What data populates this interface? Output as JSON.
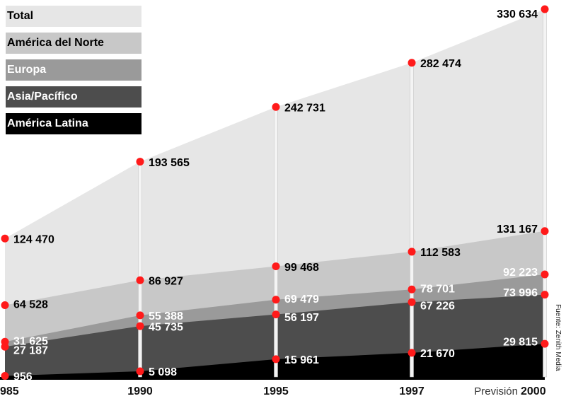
{
  "chart_data": {
    "type": "area",
    "x": [
      "985",
      "1990",
      "1995",
      "1997",
      "2000"
    ],
    "x_prefix_last": "Previsión",
    "series": [
      {
        "name": "Total",
        "values": [
          124470,
          193565,
          242731,
          282474,
          330634
        ],
        "labels": [
          "124 470",
          "193 565",
          "242 731",
          "282 474",
          "330 634"
        ],
        "color": "#e6e6e6",
        "text_color": "#000000"
      },
      {
        "name": "América del Norte",
        "values": [
          64528,
          86927,
          99468,
          112583,
          131167
        ],
        "labels": [
          "64 528",
          "86 927",
          "99 468",
          "112 583",
          "131 167"
        ],
        "color": "#c8c8c8",
        "text_color": "#000000"
      },
      {
        "name": "Europa",
        "values": [
          31625,
          55388,
          69479,
          78701,
          92223
        ],
        "labels": [
          "31 625",
          "55 388",
          "69 479",
          "78 701",
          "92 223"
        ],
        "color": "#9a9a9a",
        "text_color": "#ffffff"
      },
      {
        "name": "Asia/Pacífico",
        "values": [
          27187,
          45735,
          56197,
          67226,
          73996
        ],
        "labels": [
          "27 187",
          "45 735",
          "56 197",
          "67 226",
          "73 996"
        ],
        "color": "#4d4d4d",
        "text_color": "#ffffff"
      },
      {
        "name": "América Latina",
        "values": [
          956,
          5098,
          15961,
          21670,
          29815
        ],
        "labels": [
          "956",
          "5 098",
          "15 961",
          "21 670",
          "29 815"
        ],
        "color": "#000000",
        "text_color": "#ffffff"
      }
    ],
    "ylim": [
      0,
      340000
    ],
    "grid": false,
    "legend": "top-left",
    "marker_color": "#ff1a1a",
    "source": "Fuente: Zenith Media"
  }
}
